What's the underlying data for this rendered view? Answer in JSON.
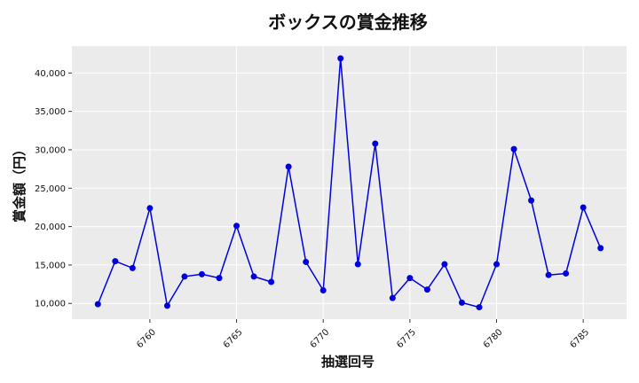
{
  "chart_data": {
    "type": "line",
    "title": "ボックスの賞金推移",
    "xlabel": "抽選回号",
    "ylabel": "賞金額（円）",
    "x": [
      6757,
      6758,
      6759,
      6760,
      6761,
      6762,
      6763,
      6764,
      6765,
      6766,
      6767,
      6768,
      6769,
      6770,
      6771,
      6772,
      6773,
      6774,
      6775,
      6776,
      6777,
      6778,
      6779,
      6780,
      6781,
      6782,
      6783,
      6784,
      6785,
      6786
    ],
    "series": [
      {
        "values": [
          9900,
          15500,
          14600,
          22400,
          9700,
          13500,
          13800,
          13300,
          20100,
          13500,
          12800,
          27800,
          15400,
          11700,
          41900,
          15100,
          30800,
          10700,
          13300,
          11800,
          15100,
          10100,
          9500,
          15100,
          30100,
          23400,
          13700,
          13900,
          22500,
          17200
        ],
        "color": "#0000dd"
      }
    ],
    "xticks": [
      6760,
      6765,
      6770,
      6775,
      6780,
      6785
    ],
    "xtick_labels": [
      "6760",
      "6765",
      "6770",
      "6775",
      "6780",
      "6785"
    ],
    "yticks": [
      10000,
      15000,
      20000,
      25000,
      30000,
      35000,
      40000
    ],
    "ytick_labels": [
      "10,000",
      "15,000",
      "20,000",
      "25,000",
      "30,000",
      "35,000",
      "40,000"
    ],
    "xlim": [
      6755.5,
      6787.5
    ],
    "ylim": [
      7950,
      43500
    ],
    "grid": true,
    "plot_background": "#ebebeb"
  }
}
